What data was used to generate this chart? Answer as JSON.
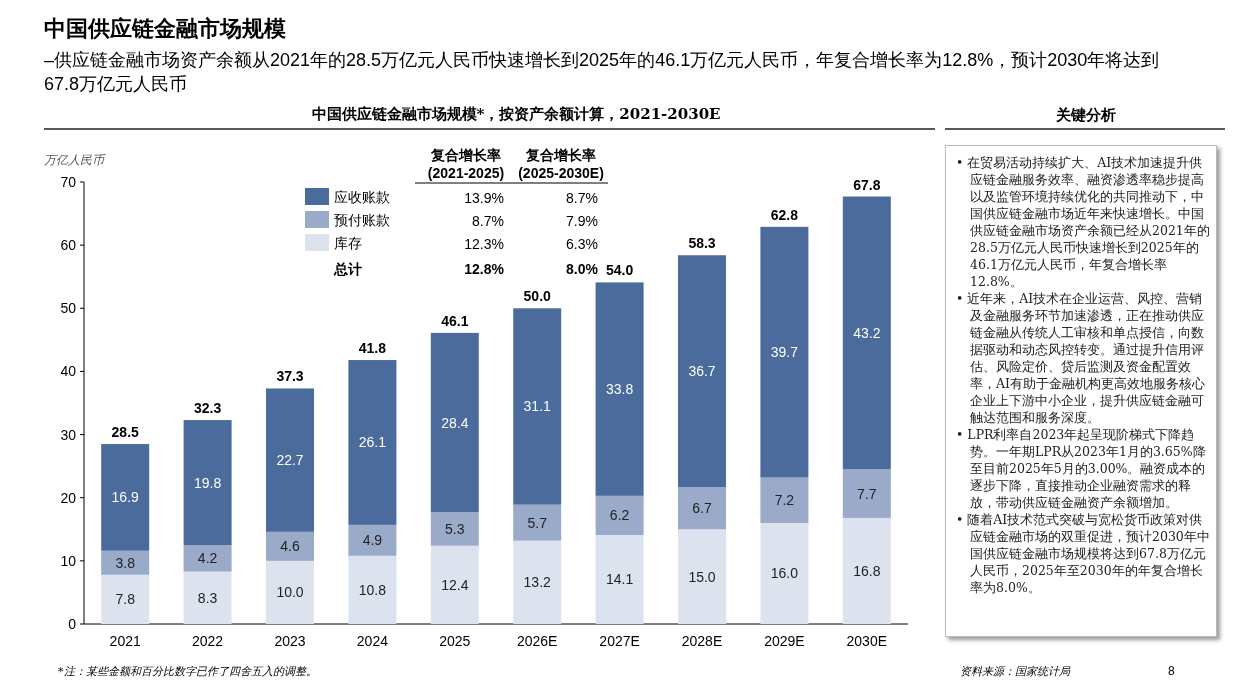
{
  "chart_data": {
    "type": "bar",
    "stacked": true,
    "title": "中国供应链金融市场规模",
    "subtitle": "–供应链金融市场资产余额从2021年的28.5万亿元人民币快速增长到2025年的46.1万亿元人民币，年复合增长率为12.8%，预计2030年将达到67.8万亿元人民币",
    "ylabel": "万亿人民币",
    "categories": [
      "2021",
      "2022",
      "2023",
      "2024",
      "2025",
      "2026E",
      "2027E",
      "2028E",
      "2029E",
      "2030E"
    ],
    "series": [
      {
        "name": "库存",
        "color": "#dde3ee",
        "values": [
          7.8,
          8.3,
          10.0,
          10.8,
          12.4,
          13.2,
          14.1,
          15.0,
          16.0,
          16.8
        ],
        "value_labels": [
          "7.8",
          "8.3",
          "10.0",
          "10.8",
          "12.4",
          "13.2",
          "14.1",
          "15.0",
          "16.0",
          "16.8"
        ]
      },
      {
        "name": "预付账款",
        "color": "#9aabc9",
        "values": [
          3.8,
          4.2,
          4.6,
          4.9,
          5.3,
          5.7,
          6.2,
          6.7,
          7.2,
          7.7
        ],
        "value_labels": [
          "3.8",
          "4.2",
          "4.6",
          "4.9",
          "5.3",
          "5.7",
          "6.2",
          "6.7",
          "7.2",
          "7.7"
        ]
      },
      {
        "name": "应收账款",
        "color": "#4a6b9b",
        "values": [
          16.9,
          19.8,
          22.7,
          26.1,
          28.4,
          31.1,
          33.8,
          36.7,
          39.7,
          43.2
        ],
        "value_labels": [
          "16.9",
          "19.8",
          "22.7",
          "26.1",
          "28.4",
          "31.1",
          "33.8",
          "36.7",
          "39.7",
          "43.2"
        ]
      }
    ],
    "totals": [
      "28.5",
      "32.3",
      "37.3",
      "41.8",
      "46.1",
      "50.0",
      "54.0",
      "58.3",
      "62.8",
      "67.8"
    ],
    "ylim": [
      0,
      70
    ],
    "yticks": [
      0,
      10,
      20,
      30,
      40,
      50,
      60,
      70
    ],
    "legend": "top left",
    "annotations": [
      "中国供应链金融市场规模*，按资产余额计算，2021-2030E",
      "复合增长率",
      "(2021-2025)",
      "复合增长率",
      "(2025-2030E)",
      "13.9%",
      "8.7%",
      "8.7%",
      "7.9%",
      "12.3%",
      "6.3%",
      "总计",
      "12.8%",
      "8.0%",
      "关键分析",
      "• 在贸易活动持续扩大、AI技术加速提升供应链金融服务效率、融资渗透率稳步提高以及监管环境持续优化的共同推动下，中国供应链金融市场近年来快速增长。中国供应链金融市场资产余额已经从2021年的28.5万亿元人民币快速增长到2025年的46.1万亿元人民币，年复合增长率12.8%。",
      "• 近年来，AI技术在企业运营、风控、营销及金融服务环节加速渗透，正在推动供应链金融从传统人工审核和单点授信，向数据驱动和动态风控转变。通过提升信用评估、风险定价、贷后监测及资金配置效率，AI有助于金融机构更高效地服务核心企业上下游中小企业，提升供应链金融可触达范围和服务深度。",
      "• LPR利率自2023年起呈现阶梯式下降趋势。一年期LPR从2023年1月的3.65%降至目前2025年5月的3.00%。融资成本的逐步下降，直接推动企业融资需求的释放，带动供应链金融资产余额增加。",
      "• 随着AI技术范式突破与宽松货币政策对供应链金融市场的双重促进，预计2030年中国供应链金融市场规模将达到67.8万亿元人民币，2025年至2030年的年复合增长率为8.0%。",
      "*注：某些金额和百分比数字已作了四舍五入的调整。",
      "资料来源：国家统计局",
      "8"
    ]
  }
}
